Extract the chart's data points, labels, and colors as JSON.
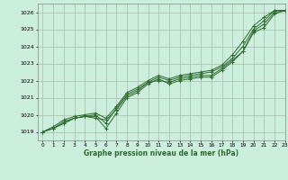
{
  "title": "Graphe pression niveau de la mer (hPa)",
  "background_color": "#cceedd",
  "grid_color": "#aabbaa",
  "line_color": "#2d6a2d",
  "xlim": [
    -0.5,
    23
  ],
  "ylim": [
    1018.5,
    1026.5
  ],
  "yticks": [
    1019,
    1020,
    1021,
    1022,
    1023,
    1024,
    1025,
    1026
  ],
  "xticks": [
    0,
    1,
    2,
    3,
    4,
    5,
    6,
    7,
    8,
    9,
    10,
    11,
    12,
    13,
    14,
    15,
    16,
    17,
    18,
    19,
    20,
    21,
    22,
    23
  ],
  "series": [
    [
      1019.0,
      1019.2,
      1019.5,
      1019.8,
      1019.9,
      1019.9,
      1019.2,
      1020.1,
      1021.0,
      1021.3,
      1021.8,
      1022.1,
      1021.8,
      1022.0,
      1022.1,
      1022.2,
      1022.2,
      1022.6,
      1023.1,
      1023.7,
      1024.8,
      1025.1,
      1025.9,
      1026.1
    ],
    [
      1019.0,
      1019.2,
      1019.5,
      1019.8,
      1019.9,
      1019.8,
      1019.7,
      1020.3,
      1021.1,
      1021.4,
      1021.9,
      1022.0,
      1021.9,
      1022.1,
      1022.2,
      1022.3,
      1022.3,
      1022.7,
      1023.2,
      1023.7,
      1024.9,
      1025.3,
      1026.0,
      1026.1
    ],
    [
      1019.0,
      1019.2,
      1019.6,
      1019.8,
      1019.9,
      1020.0,
      1019.5,
      1020.4,
      1021.2,
      1021.5,
      1021.9,
      1022.2,
      1022.0,
      1022.2,
      1022.3,
      1022.4,
      1022.5,
      1022.8,
      1023.3,
      1024.0,
      1025.0,
      1025.5,
      1026.1,
      1026.1
    ],
    [
      1019.0,
      1019.3,
      1019.7,
      1019.9,
      1020.0,
      1020.1,
      1019.8,
      1020.5,
      1021.3,
      1021.6,
      1022.0,
      1022.3,
      1022.1,
      1022.3,
      1022.4,
      1022.5,
      1022.6,
      1022.9,
      1023.5,
      1024.3,
      1025.2,
      1025.7,
      1026.1,
      1026.1
    ]
  ]
}
